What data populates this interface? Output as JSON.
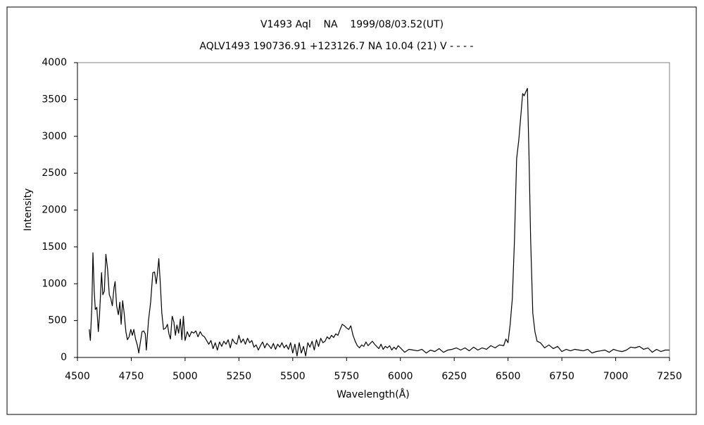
{
  "chart_data": {
    "type": "line",
    "title": "V1493 Aql    NA    1999/08/03.52(UT)",
    "subtitle": "AQLV1493 190736.91 +123126.7 NA 10.04 (21) V - - - -",
    "x_label": "Wavelength(Å)",
    "y_label": "Intensity",
    "xlim": [
      4500,
      7250
    ],
    "xticks": [
      4500,
      4750,
      5000,
      5250,
      5500,
      5750,
      6000,
      6250,
      6500,
      6750,
      7000,
      7250
    ],
    "ylim": [
      0,
      4000
    ],
    "yticks": [
      0,
      500,
      1000,
      1500,
      2000,
      2500,
      3000,
      3500,
      4000
    ],
    "grid": false,
    "color": "#000000",
    "x": [
      4555,
      4560,
      4567,
      4572,
      4578,
      4583,
      4590,
      4597,
      4603,
      4612,
      4618,
      4625,
      4632,
      4640,
      4648,
      4655,
      4662,
      4670,
      4675,
      4682,
      4690,
      4697,
      4703,
      4710,
      4717,
      4725,
      4732,
      4740,
      4748,
      4755,
      4762,
      4770,
      4778,
      4785,
      4792,
      4800,
      4808,
      4815,
      4820,
      4830,
      4840,
      4850,
      4858,
      4866,
      4872,
      4878,
      4885,
      4892,
      4900,
      4910,
      4918,
      4925,
      4932,
      4940,
      4948,
      4955,
      4962,
      4970,
      4978,
      4985,
      4992,
      5000,
      5010,
      5020,
      5030,
      5040,
      5050,
      5060,
      5070,
      5080,
      5090,
      5100,
      5110,
      5120,
      5130,
      5140,
      5150,
      5160,
      5170,
      5180,
      5190,
      5200,
      5210,
      5220,
      5230,
      5240,
      5250,
      5260,
      5270,
      5280,
      5290,
      5300,
      5310,
      5320,
      5330,
      5340,
      5350,
      5360,
      5370,
      5380,
      5390,
      5400,
      5410,
      5420,
      5430,
      5440,
      5450,
      5460,
      5470,
      5480,
      5490,
      5500,
      5510,
      5520,
      5530,
      5540,
      5550,
      5560,
      5570,
      5580,
      5590,
      5600,
      5610,
      5620,
      5630,
      5640,
      5650,
      5660,
      5670,
      5680,
      5690,
      5700,
      5710,
      5720,
      5730,
      5740,
      5750,
      5760,
      5770,
      5780,
      5790,
      5800,
      5810,
      5820,
      5830,
      5840,
      5850,
      5860,
      5870,
      5880,
      5890,
      5900,
      5910,
      5920,
      5930,
      5940,
      5950,
      5960,
      5970,
      5980,
      5990,
      6000,
      6020,
      6040,
      6060,
      6080,
      6100,
      6120,
      6140,
      6160,
      6180,
      6200,
      6220,
      6240,
      6260,
      6280,
      6300,
      6320,
      6340,
      6360,
      6380,
      6400,
      6420,
      6440,
      6460,
      6480,
      6490,
      6500,
      6510,
      6520,
      6530,
      6540,
      6550,
      6560,
      6568,
      6575,
      6582,
      6590,
      6597,
      6605,
      6615,
      6625,
      6635,
      6650,
      6670,
      6690,
      6710,
      6730,
      6750,
      6770,
      6790,
      6810,
      6830,
      6850,
      6870,
      6890,
      6910,
      6930,
      6950,
      6970,
      6990,
      7010,
      7030,
      7050,
      7070,
      7090,
      7110,
      7130,
      7150,
      7170,
      7190,
      7210,
      7230,
      7250
    ],
    "values": [
      380,
      230,
      700,
      1420,
      900,
      650,
      680,
      350,
      600,
      1150,
      850,
      900,
      1400,
      1200,
      850,
      800,
      700,
      950,
      1030,
      700,
      580,
      750,
      450,
      770,
      600,
      350,
      240,
      280,
      380,
      300,
      380,
      250,
      170,
      60,
      200,
      350,
      360,
      320,
      100,
      500,
      750,
      1150,
      1160,
      1000,
      1150,
      1340,
      1000,
      600,
      380,
      400,
      450,
      320,
      250,
      560,
      480,
      300,
      440,
      330,
      520,
      240,
      560,
      230,
      350,
      280,
      350,
      330,
      360,
      280,
      350,
      300,
      280,
      230,
      180,
      230,
      120,
      200,
      100,
      210,
      150,
      220,
      180,
      240,
      130,
      250,
      200,
      180,
      300,
      200,
      250,
      180,
      260,
      200,
      230,
      140,
      170,
      100,
      160,
      210,
      130,
      190,
      160,
      120,
      190,
      110,
      180,
      140,
      200,
      130,
      170,
      110,
      200,
      60,
      180,
      20,
      200,
      60,
      150,
      20,
      200,
      140,
      220,
      100,
      240,
      150,
      260,
      200,
      220,
      280,
      250,
      300,
      270,
      320,
      300,
      380,
      450,
      430,
      400,
      380,
      430,
      300,
      220,
      160,
      130,
      170,
      150,
      210,
      160,
      190,
      220,
      180,
      150,
      120,
      180,
      110,
      150,
      130,
      160,
      100,
      140,
      110,
      160,
      130,
      70,
      110,
      100,
      90,
      110,
      60,
      100,
      80,
      120,
      70,
      100,
      110,
      130,
      100,
      130,
      90,
      140,
      100,
      130,
      110,
      160,
      130,
      170,
      160,
      250,
      200,
      450,
      800,
      1600,
      2700,
      2950,
      3300,
      3580,
      3550,
      3600,
      3650,
      2800,
      1600,
      600,
      350,
      220,
      200,
      130,
      170,
      120,
      150,
      80,
      110,
      90,
      110,
      100,
      90,
      110,
      60,
      80,
      90,
      100,
      70,
      110,
      90,
      80,
      100,
      140,
      130,
      150,
      110,
      130,
      70,
      110,
      80,
      100,
      100
    ]
  }
}
